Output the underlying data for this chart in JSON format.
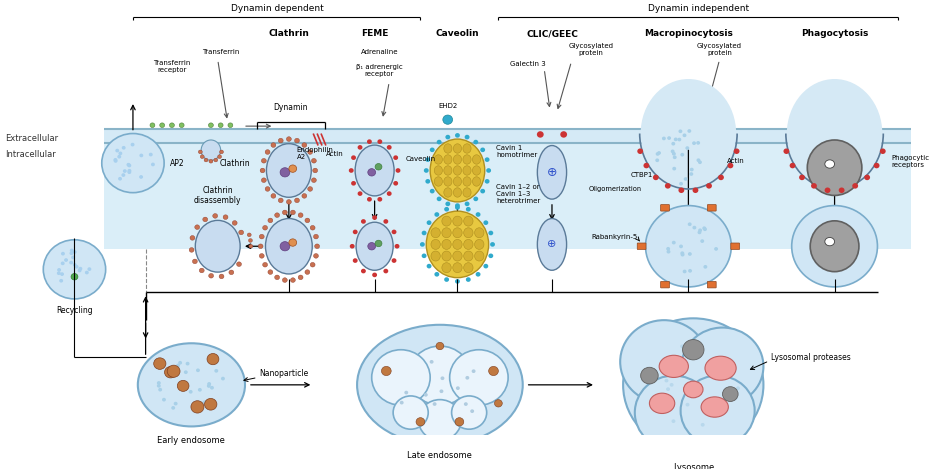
{
  "bg_color": "#ffffff",
  "dynamin_dep_label": "Dynamin dependent",
  "dynamin_indep_label": "Dynamin independent",
  "pathway_labels": [
    "Clathrin",
    "FEME",
    "Caveolin",
    "CLIC/GEEC",
    "Macropinocytosis",
    "Phagocytosis"
  ],
  "extracellular_label": "Extracellular",
  "intracellular_label": "Intracellular",
  "recycling_label": "Recycling",
  "early_endosome_label": "Early endosome",
  "late_endosome_label": "Late endosome",
  "lysosome_label": "Lysosome",
  "nanoparticle_label": "Nanoparticle",
  "lysosomal_proteases_label": "Lysosomal proteases",
  "membrane_band_color": "#cde5f5",
  "intracellular_bg": "#e0eef8",
  "vesicle_face": "#d0e6f5",
  "vesicle_edge": "#7aaccb",
  "clathrin_dot": "#c87050",
  "actin_color": "#cc3333",
  "caveolin_fill": "#e8c840",
  "caveolin_stripe": "#c8a830",
  "ehd2_color": "#30aacc",
  "orange_marker": "#e07030",
  "gray_cargo": "#909090"
}
